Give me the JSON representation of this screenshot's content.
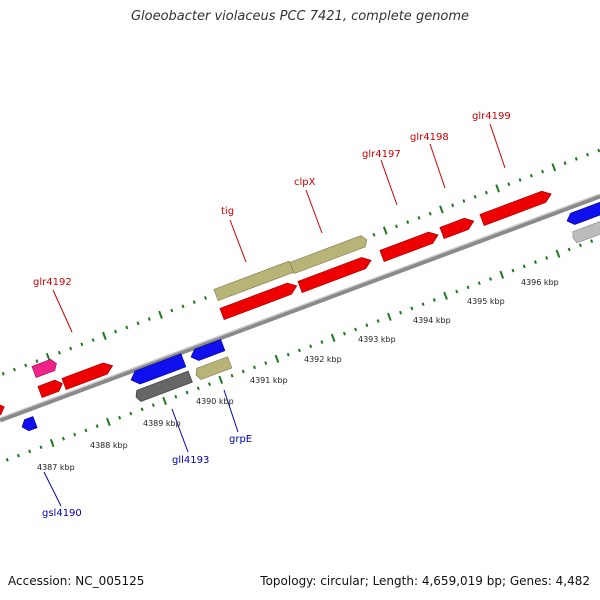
{
  "title": "Gloeobacter violaceus PCC 7421, complete genome",
  "accession": {
    "label": "Accession:",
    "value": "NC_005125"
  },
  "topology": {
    "topology_label": "Topology:",
    "topology_value": "circular;",
    "length_label": "Length:",
    "length_value": "4,659,019 bp;",
    "genes_label": "Genes:",
    "genes_value": "4,482"
  },
  "colors": {
    "backbone": "#8a8a8a",
    "tick": "#1e7a1e",
    "forward_label": "#cc0000",
    "reverse_label": "#0000aa",
    "red_gene": "#ee0000",
    "khaki_gene": "#b8b478",
    "blue_gene": "#1010ee",
    "magenta_gene": "#ee2288",
    "gray_gene": "#666666",
    "lightgray_gene": "#bbbbbb"
  },
  "kbp_labels": [
    "4387 kbp",
    "4388 kbp",
    "4389 kbp",
    "4390 kbp",
    "4391 kbp",
    "4392 kbp",
    "4393 kbp",
    "4394 kbp",
    "4395 kbp",
    "4396 kbp"
  ],
  "gene_labels": {
    "forward": [
      "glr4192",
      "tig",
      "clpX",
      "glr4197",
      "glr4198",
      "glr4199"
    ],
    "reverse": [
      "gsl4190",
      "gll4193",
      "grpE"
    ]
  }
}
